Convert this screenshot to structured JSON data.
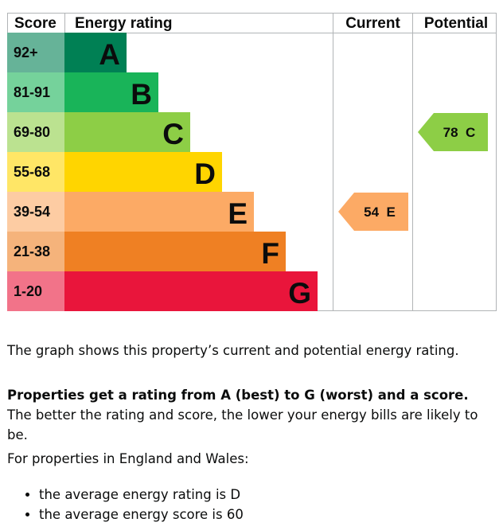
{
  "chart_data": {
    "type": "bar",
    "headers": {
      "score": "Score",
      "energy_rating": "Energy rating",
      "current": "Current",
      "potential": "Potential"
    },
    "bands": [
      {
        "score": "92+",
        "letter": "A",
        "color": "#008054",
        "score_bg": "#66b398"
      },
      {
        "score": "81-91",
        "letter": "B",
        "color": "#19b459",
        "score_bg": "#75d29b"
      },
      {
        "score": "69-80",
        "letter": "C",
        "color": "#8dce46",
        "score_bg": "#bbe290"
      },
      {
        "score": "55-68",
        "letter": "D",
        "color": "#ffd500",
        "score_bg": "#ffe666"
      },
      {
        "score": "39-54",
        "letter": "E",
        "color": "#fcaa65",
        "score_bg": "#fdcca3"
      },
      {
        "score": "21-38",
        "letter": "F",
        "color": "#ef8023",
        "score_bg": "#f5b37b"
      },
      {
        "score": "1-20",
        "letter": "G",
        "color": "#e9153b",
        "score_bg": "#f27389"
      }
    ],
    "current": {
      "value": 54,
      "letter": "E",
      "label": "54  E",
      "color": "#fcaa65"
    },
    "potential": {
      "value": 78,
      "letter": "C",
      "label": "78  C",
      "color": "#8dce46"
    }
  },
  "text": {
    "intro": "The graph shows this property’s current and potential energy rating.",
    "rating_bold": "Properties get a rating from A (best) to G (worst) and a score.",
    "rating_rest": " The better the rating and score, the lower your energy bills are likely to be.",
    "regional_intro": "For properties in England and Wales:",
    "averages": [
      "the average energy rating is D",
      "the average energy score is 60"
    ]
  }
}
